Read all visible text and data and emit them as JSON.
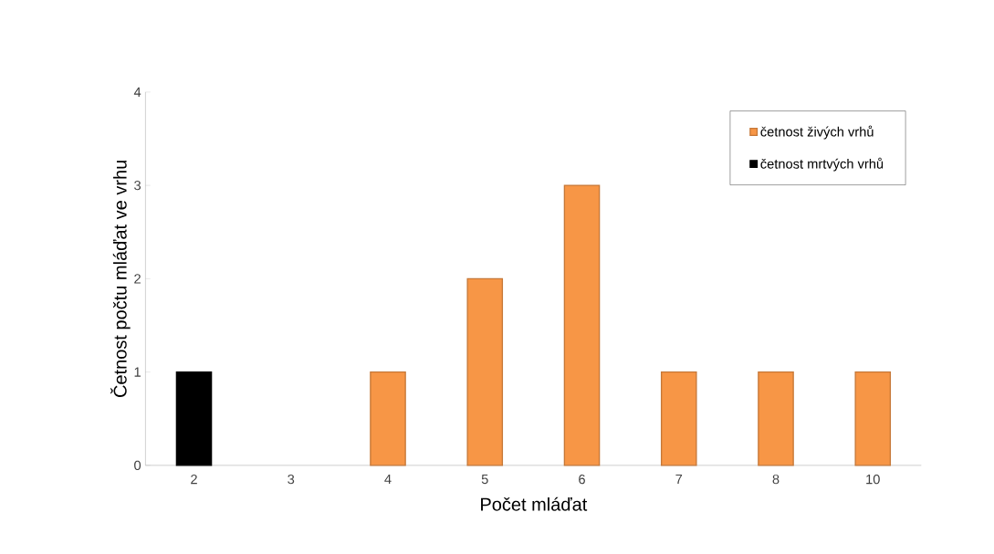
{
  "chart_data": {
    "type": "bar",
    "xlabel": "Počet mláďat",
    "ylabel": "Četnost počtu mláďat ve vrhu",
    "categories": [
      "2",
      "3",
      "4",
      "5",
      "6",
      "7",
      "8",
      "10"
    ],
    "series": [
      {
        "name": "četnost živých vrhů",
        "color": "#f79646",
        "values": [
          null,
          null,
          1,
          2,
          3,
          1,
          1,
          1
        ]
      },
      {
        "name": "četnost mrtvých vrhů",
        "color": "#000000",
        "values": [
          1,
          null,
          null,
          null,
          null,
          null,
          null,
          null
        ]
      }
    ],
    "ylim": [
      0,
      4
    ],
    "yticks": [
      0,
      1,
      2,
      3,
      4
    ],
    "grid": false,
    "legend": "top right"
  }
}
